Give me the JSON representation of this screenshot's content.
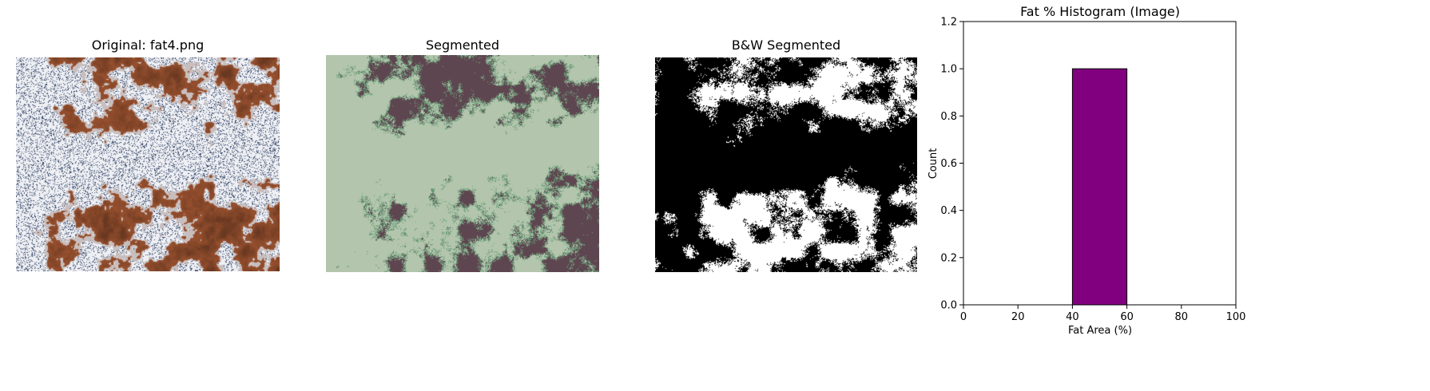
{
  "figure": {
    "panels": [
      {
        "title": "Original: fat4.png",
        "kind": "histology-tissue-image"
      },
      {
        "title": "Segmented",
        "kind": "segmentation-overlay-image"
      },
      {
        "title": "B&W Segmented",
        "kind": "binary-mask-image"
      }
    ]
  },
  "colors": {
    "bar_fill": "#800080",
    "bar_edge": "#000000",
    "tissue_brown": "#8b4a2b",
    "tissue_white": "#eef0f4",
    "tissue_blue": "#3b4a6b",
    "seg_green": "#b3c6ad",
    "seg_dark": "#5e4650",
    "seg_edge": "#6f9e7c"
  },
  "chart_data": {
    "type": "bar",
    "title": "Fat % Histogram (Image)",
    "xlabel": "Fat Area (%)",
    "ylabel": "Count",
    "xlim": [
      0,
      100
    ],
    "ylim": [
      0,
      1.2
    ],
    "xticks": [
      "0",
      "20",
      "40",
      "60",
      "80",
      "100"
    ],
    "yticks": [
      "0.0",
      "0.2",
      "0.4",
      "0.6",
      "0.8",
      "1.0",
      "1.2"
    ],
    "bins": [
      {
        "from": 40,
        "to": 60,
        "count": 1
      }
    ],
    "grid": false
  }
}
